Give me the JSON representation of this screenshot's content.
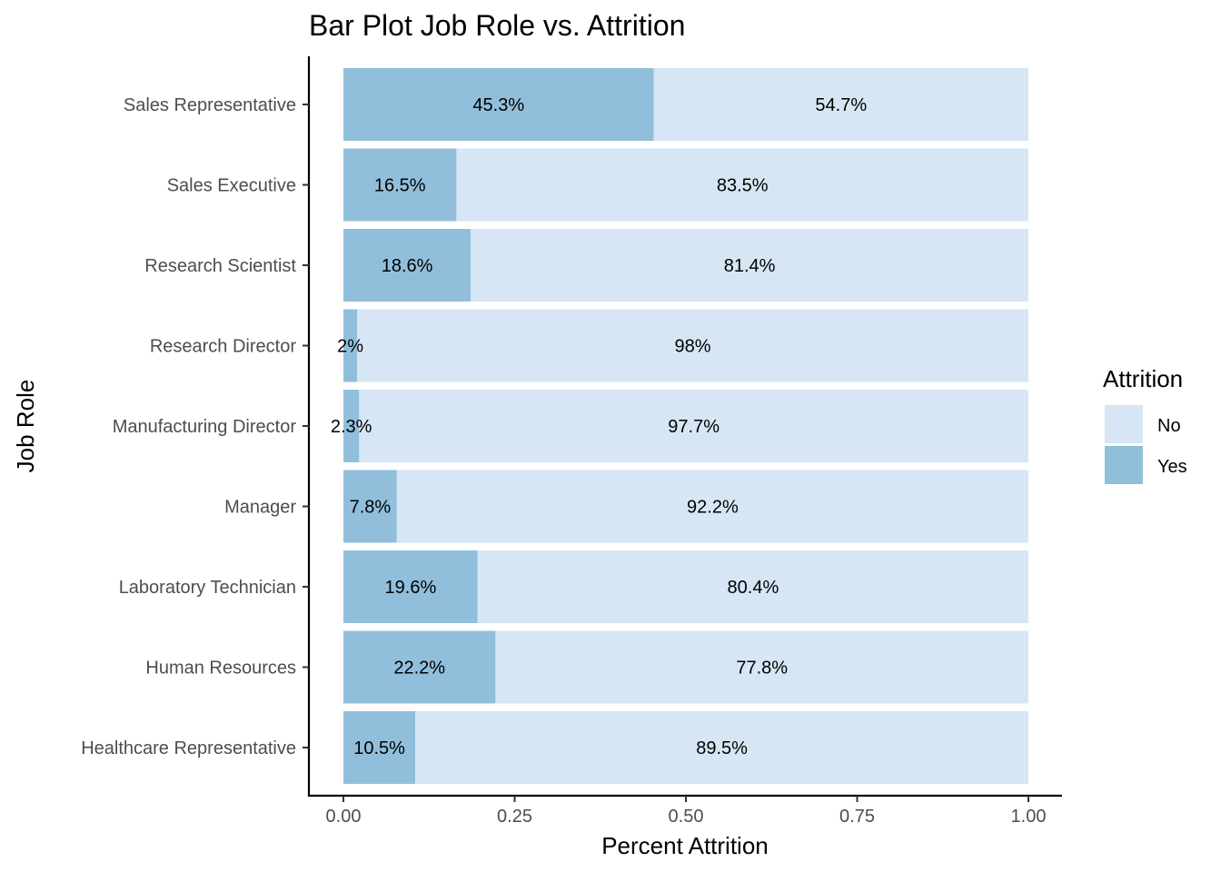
{
  "chart_data": {
    "type": "bar",
    "orientation": "horizontal",
    "stacked": true,
    "title": "Bar Plot Job Role vs. Attrition",
    "xlabel": "Percent Attrition",
    "ylabel": "Job Role",
    "xlim": [
      0,
      1
    ],
    "xticks": [
      {
        "value": 0,
        "label": "0.00"
      },
      {
        "value": 0.25,
        "label": "0.25"
      },
      {
        "value": 0.5,
        "label": "0.50"
      },
      {
        "value": 0.75,
        "label": "0.75"
      },
      {
        "value": 1,
        "label": "1.00"
      }
    ],
    "grid": false,
    "categories": [
      "Sales Representative",
      "Sales Executive",
      "Research Scientist",
      "Research Director",
      "Manufacturing Director",
      "Manager",
      "Laboratory Technician",
      "Human Resources",
      "Healthcare Representative"
    ],
    "series": [
      {
        "name": "Yes",
        "color": "#91bfdb",
        "values": [
          0.453,
          0.165,
          0.186,
          0.02,
          0.023,
          0.078,
          0.196,
          0.222,
          0.105
        ],
        "labels": [
          "45.3%",
          "16.5%",
          "18.6%",
          "2%",
          "2.3%",
          "7.8%",
          "19.6%",
          "22.2%",
          "10.5%"
        ]
      },
      {
        "name": "No",
        "color": "#d6e6f4",
        "values": [
          0.547,
          0.835,
          0.814,
          0.98,
          0.977,
          0.922,
          0.804,
          0.778,
          0.895
        ],
        "labels": [
          "54.7%",
          "83.5%",
          "81.4%",
          "98%",
          "97.7%",
          "92.2%",
          "80.4%",
          "77.8%",
          "89.5%"
        ]
      }
    ],
    "legend": {
      "title": "Attrition",
      "position": "right",
      "entries": [
        "No",
        "Yes"
      ]
    }
  }
}
